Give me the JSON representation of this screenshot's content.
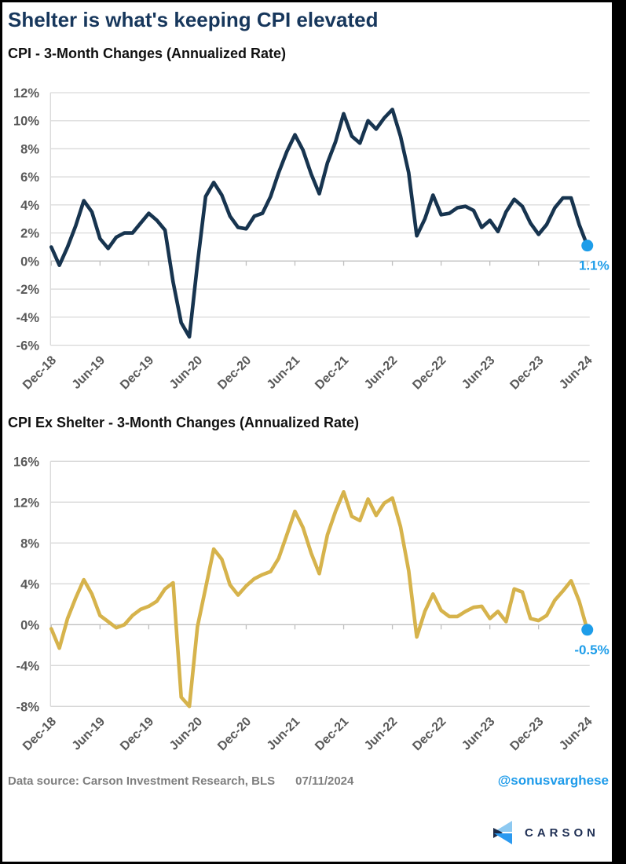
{
  "page": {
    "title": "Shelter is what's keeping CPI elevated"
  },
  "colors": {
    "title_navy": "#17375c",
    "cpi_line": "#17344f",
    "ex_shelter_line": "#d6b34c",
    "accent_blue": "#1e9de9",
    "grid": "#d9d9d9",
    "axis": "#bfbfbf",
    "tick_label_gray": "#595959",
    "footer_gray": "#7f7f7f",
    "logo_navy": "#1f2f54",
    "logo_light_blue": "#8dc9f1",
    "logo_mid_blue": "#2b9af0"
  },
  "footer": {
    "source": "Data source: Carson Investment Research, BLS",
    "date": "07/11/2024",
    "handle": "@sonusvarghese",
    "logo_text": "CARSON"
  },
  "chart_data": [
    {
      "type": "line",
      "title": "CPI - 3-Month Changes (Annualized Rate)",
      "ylabel": "",
      "xlabel": "",
      "ylim": [
        -6,
        12
      ],
      "yticks": [
        12,
        10,
        8,
        6,
        4,
        2,
        0,
        -2,
        -4,
        -6
      ],
      "ytick_suffix": "%",
      "grid": true,
      "x_tick_labels": [
        "Dec-18",
        "Jun-19",
        "Dec-19",
        "Jun-20",
        "Dec-20",
        "Jun-21",
        "Dec-21",
        "Jun-22",
        "Dec-22",
        "Jun-23",
        "Dec-23",
        "Jun-24"
      ],
      "categories": [
        "Dec-18",
        "Jan-19",
        "Feb-19",
        "Mar-19",
        "Apr-19",
        "May-19",
        "Jun-19",
        "Jul-19",
        "Aug-19",
        "Sep-19",
        "Oct-19",
        "Nov-19",
        "Dec-19",
        "Jan-20",
        "Feb-20",
        "Mar-20",
        "Apr-20",
        "May-20",
        "Jun-20",
        "Jul-20",
        "Aug-20",
        "Sep-20",
        "Oct-20",
        "Nov-20",
        "Dec-20",
        "Jan-21",
        "Feb-21",
        "Mar-21",
        "Apr-21",
        "May-21",
        "Jun-21",
        "Jul-21",
        "Aug-21",
        "Sep-21",
        "Oct-21",
        "Nov-21",
        "Dec-21",
        "Jan-22",
        "Feb-22",
        "Mar-22",
        "Apr-22",
        "May-22",
        "Jun-22",
        "Jul-22",
        "Aug-22",
        "Sep-22",
        "Oct-22",
        "Nov-22",
        "Dec-22",
        "Jan-23",
        "Feb-23",
        "Mar-23",
        "Apr-23",
        "May-23",
        "Jun-23",
        "Jul-23",
        "Aug-23",
        "Sep-23",
        "Oct-23",
        "Nov-23",
        "Dec-23",
        "Jan-24",
        "Feb-24",
        "Mar-24",
        "Apr-24",
        "May-24",
        "Jun-24"
      ],
      "values": [
        1.0,
        -0.3,
        1.0,
        2.5,
        4.3,
        3.5,
        1.6,
        0.9,
        1.7,
        2.0,
        2.0,
        2.7,
        3.4,
        2.9,
        2.2,
        -1.5,
        -4.4,
        -5.4,
        -0.2,
        4.6,
        5.6,
        4.7,
        3.2,
        2.4,
        2.3,
        3.2,
        3.4,
        4.6,
        6.3,
        7.8,
        9.0,
        7.9,
        6.2,
        4.8,
        7.0,
        8.5,
        10.5,
        8.9,
        8.4,
        10.0,
        9.4,
        10.2,
        10.8,
        8.9,
        6.3,
        1.8,
        3.0,
        4.7,
        3.3,
        3.4,
        3.8,
        3.9,
        3.6,
        2.4,
        2.9,
        2.1,
        3.5,
        4.4,
        3.9,
        2.7,
        1.9,
        2.6,
        3.8,
        4.5,
        4.5,
        2.6,
        1.1
      ],
      "last_point_label": "1.1%"
    },
    {
      "type": "line",
      "title": "CPI Ex Shelter - 3-Month Changes (Annualized Rate)",
      "ylabel": "",
      "xlabel": "",
      "ylim": [
        -8,
        16
      ],
      "yticks": [
        16,
        12,
        8,
        4,
        0,
        -4,
        -8
      ],
      "ytick_suffix": "%",
      "grid": true,
      "x_tick_labels": [
        "Dec-18",
        "Jun-19",
        "Dec-19",
        "Jun-20",
        "Dec-20",
        "Jun-21",
        "Dec-21",
        "Jun-22",
        "Dec-22",
        "Jun-23",
        "Dec-23",
        "Jun-24"
      ],
      "categories": [
        "Dec-18",
        "Jan-19",
        "Feb-19",
        "Mar-19",
        "Apr-19",
        "May-19",
        "Jun-19",
        "Jul-19",
        "Aug-19",
        "Sep-19",
        "Oct-19",
        "Nov-19",
        "Dec-19",
        "Jan-20",
        "Feb-20",
        "Mar-20",
        "Apr-20",
        "May-20",
        "Jun-20",
        "Jul-20",
        "Aug-20",
        "Sep-20",
        "Oct-20",
        "Nov-20",
        "Dec-20",
        "Jan-21",
        "Feb-21",
        "Mar-21",
        "Apr-21",
        "May-21",
        "Jun-21",
        "Jul-21",
        "Aug-21",
        "Sep-21",
        "Oct-21",
        "Nov-21",
        "Dec-21",
        "Jan-22",
        "Feb-22",
        "Mar-22",
        "Apr-22",
        "May-22",
        "Jun-22",
        "Jul-22",
        "Aug-22",
        "Sep-22",
        "Oct-22",
        "Nov-22",
        "Dec-22",
        "Jan-23",
        "Feb-23",
        "Mar-23",
        "Apr-23",
        "May-23",
        "Jun-23",
        "Jul-23",
        "Aug-23",
        "Sep-23",
        "Oct-23",
        "Nov-23",
        "Dec-23",
        "Jan-24",
        "Feb-24",
        "Mar-24",
        "Apr-24",
        "May-24",
        "Jun-24"
      ],
      "values": [
        -0.4,
        -2.3,
        0.6,
        2.6,
        4.4,
        3.0,
        0.9,
        0.3,
        -0.3,
        0.0,
        0.9,
        1.5,
        1.8,
        2.3,
        3.5,
        4.1,
        -7.1,
        -8.0,
        -0.2,
        3.6,
        7.4,
        6.4,
        3.9,
        2.9,
        3.8,
        4.5,
        4.9,
        5.2,
        6.5,
        8.8,
        11.1,
        9.5,
        7.0,
        5.0,
        8.8,
        11.1,
        13.0,
        10.6,
        10.2,
        12.3,
        10.7,
        11.9,
        12.4,
        9.6,
        5.3,
        -1.2,
        1.3,
        3.0,
        1.4,
        0.8,
        0.8,
        1.3,
        1.7,
        1.8,
        0.6,
        1.3,
        0.3,
        3.5,
        3.2,
        0.6,
        0.4,
        0.9,
        2.4,
        3.3,
        4.3,
        2.3,
        -0.5
      ],
      "last_point_label": "-0.5%"
    }
  ]
}
